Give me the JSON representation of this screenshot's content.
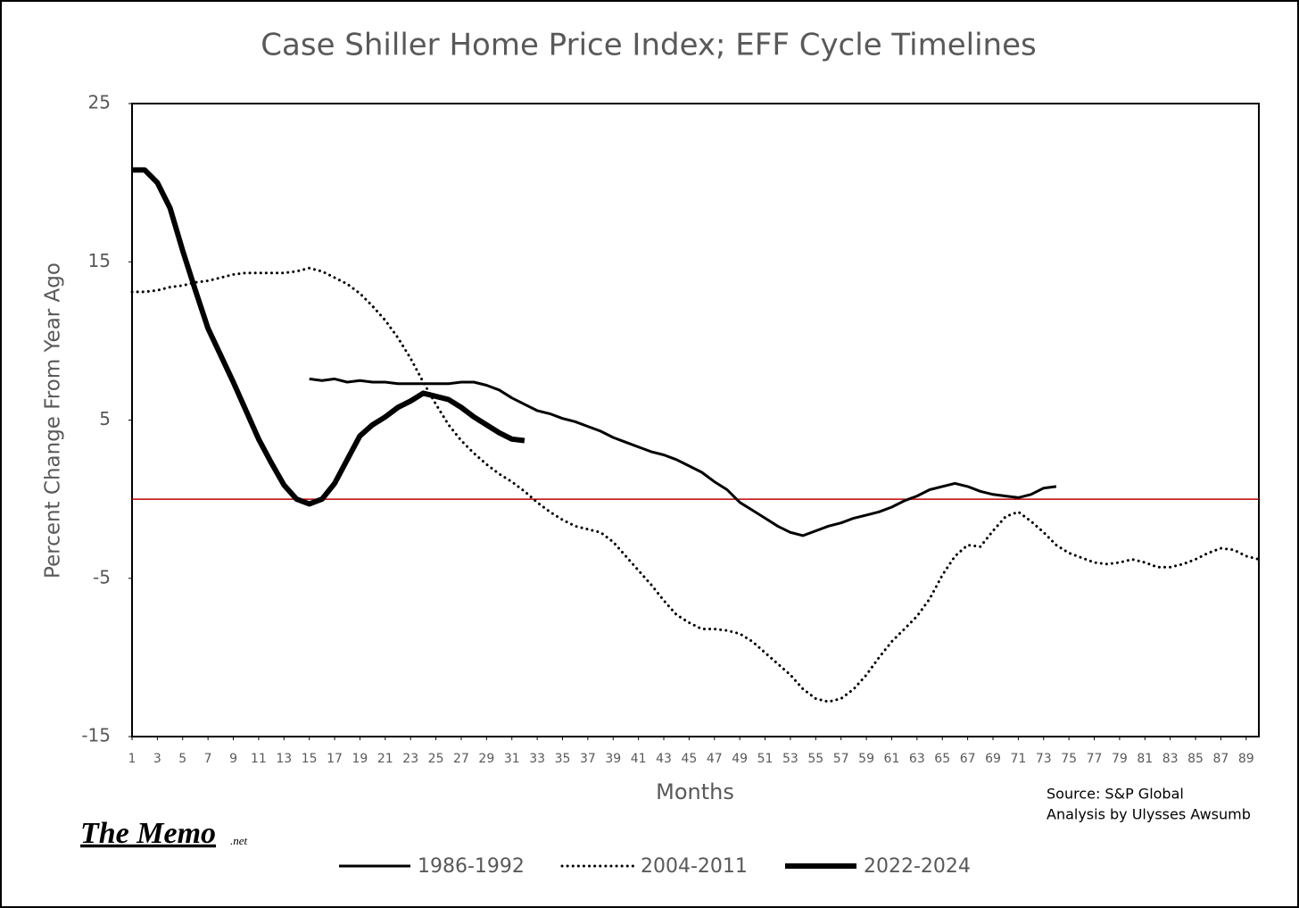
{
  "chart_data": {
    "type": "line",
    "title": "Case Shiller Home Price Index; EFF Cycle Timelines",
    "x_label": "Months",
    "y_label": "Percent Change From Year Ago",
    "source": "Source: S&P Global",
    "analysis": "Analysis by Ulysses Awsumb",
    "logo": "The Memo",
    "logo_suffix": ".net",
    "x": [
      1,
      2,
      3,
      4,
      5,
      6,
      7,
      8,
      9,
      10,
      11,
      12,
      13,
      14,
      15,
      16,
      17,
      18,
      19,
      20,
      21,
      22,
      23,
      24,
      25,
      26,
      27,
      28,
      29,
      30,
      31,
      32,
      33,
      34,
      35,
      36,
      37,
      38,
      39,
      40,
      41,
      42,
      43,
      44,
      45,
      46,
      47,
      48,
      49,
      50,
      51,
      52,
      53,
      54,
      55,
      56,
      57,
      58,
      59,
      60,
      61,
      62,
      63,
      64,
      65,
      66,
      67,
      68,
      69,
      70,
      71,
      72,
      73,
      74,
      75,
      76,
      77,
      78,
      79,
      80,
      81,
      82,
      83,
      84,
      85,
      86,
      87,
      88,
      89,
      90
    ],
    "xlim": [
      1,
      90
    ],
    "xticks": [
      1,
      3,
      5,
      7,
      9,
      11,
      13,
      15,
      17,
      19,
      21,
      23,
      25,
      27,
      29,
      31,
      33,
      35,
      37,
      39,
      41,
      43,
      45,
      47,
      49,
      51,
      53,
      55,
      57,
      59,
      61,
      63,
      65,
      67,
      69,
      71,
      73,
      75,
      77,
      79,
      81,
      83,
      85,
      87,
      89
    ],
    "ylim": [
      -15,
      25
    ],
    "yticks": [
      -15,
      -5,
      5,
      15,
      25
    ],
    "zero_line_color": "#c00000",
    "grid": false,
    "legend": "bottom",
    "series": [
      {
        "name": "1986-1992",
        "color": "#000000",
        "width": 3,
        "dash": "solid",
        "values": [
          null,
          null,
          null,
          null,
          null,
          null,
          null,
          null,
          null,
          null,
          null,
          null,
          null,
          null,
          7.6,
          7.5,
          7.6,
          7.4,
          7.5,
          7.4,
          7.4,
          7.3,
          7.3,
          7.3,
          7.3,
          7.3,
          7.4,
          7.4,
          7.2,
          6.9,
          6.4,
          6.0,
          5.6,
          5.4,
          5.1,
          4.9,
          4.6,
          4.3,
          3.9,
          3.6,
          3.3,
          3.0,
          2.8,
          2.5,
          2.1,
          1.7,
          1.1,
          0.6,
          -0.2,
          -0.7,
          -1.2,
          -1.7,
          -2.1,
          -2.3,
          -2.0,
          -1.7,
          -1.5,
          -1.2,
          -1.0,
          -0.8,
          -0.5,
          -0.1,
          0.2,
          0.6,
          0.8,
          1.0,
          0.8,
          0.5,
          0.3,
          0.2,
          0.1,
          0.3,
          0.7,
          0.8,
          null,
          null,
          null,
          null,
          null,
          null,
          null,
          null,
          null,
          null,
          null,
          null,
          null,
          null,
          null,
          null
        ]
      },
      {
        "name": "2004-2011",
        "color": "#000000",
        "width": 3,
        "dash": "dotted",
        "values": [
          13.1,
          13.1,
          13.2,
          13.4,
          13.5,
          13.7,
          13.8,
          14.0,
          14.2,
          14.3,
          14.3,
          14.3,
          14.3,
          14.4,
          14.6,
          14.4,
          14.0,
          13.6,
          13.0,
          12.2,
          11.3,
          10.2,
          8.9,
          7.4,
          6.0,
          4.7,
          3.7,
          2.9,
          2.2,
          1.6,
          1.1,
          0.5,
          -0.2,
          -0.8,
          -1.3,
          -1.7,
          -1.9,
          -2.1,
          -2.7,
          -3.6,
          -4.5,
          -5.4,
          -6.4,
          -7.3,
          -7.8,
          -8.2,
          -8.2,
          -8.3,
          -8.5,
          -9.0,
          -9.7,
          -10.4,
          -11.1,
          -12.0,
          -12.6,
          -12.8,
          -12.6,
          -12.0,
          -11.1,
          -10.0,
          -9.0,
          -8.2,
          -7.4,
          -6.3,
          -4.8,
          -3.6,
          -2.9,
          -3.0,
          -2.0,
          -1.1,
          -0.8,
          -1.4,
          -2.1,
          -2.9,
          -3.4,
          -3.7,
          -4.0,
          -4.1,
          -4.0,
          -3.8,
          -4.0,
          -4.3,
          -4.3,
          -4.1,
          -3.8,
          -3.4,
          -3.1,
          -3.2,
          -3.6,
          -3.8
        ]
      },
      {
        "name": "2022-2024",
        "color": "#000000",
        "width": 6,
        "dash": "solid",
        "values": [
          20.8,
          20.8,
          20.0,
          18.4,
          15.7,
          13.2,
          10.8,
          9.1,
          7.4,
          5.6,
          3.8,
          2.3,
          0.9,
          0.0,
          -0.3,
          0.0,
          1.0,
          2.5,
          4.0,
          4.7,
          5.2,
          5.8,
          6.2,
          6.7,
          6.5,
          6.3,
          5.8,
          5.2,
          4.7,
          4.2,
          3.8,
          3.7,
          null,
          null,
          null,
          null,
          null,
          null,
          null,
          null,
          null,
          null,
          null,
          null,
          null,
          null,
          null,
          null,
          null,
          null,
          null,
          null,
          null,
          null,
          null,
          null,
          null,
          null,
          null,
          null,
          null,
          null,
          null,
          null,
          null,
          null,
          null,
          null,
          null,
          null,
          null,
          null,
          null,
          null,
          null,
          null,
          null,
          null,
          null,
          null,
          null,
          null,
          null,
          null,
          null,
          null,
          null,
          null,
          null,
          null
        ]
      }
    ]
  }
}
